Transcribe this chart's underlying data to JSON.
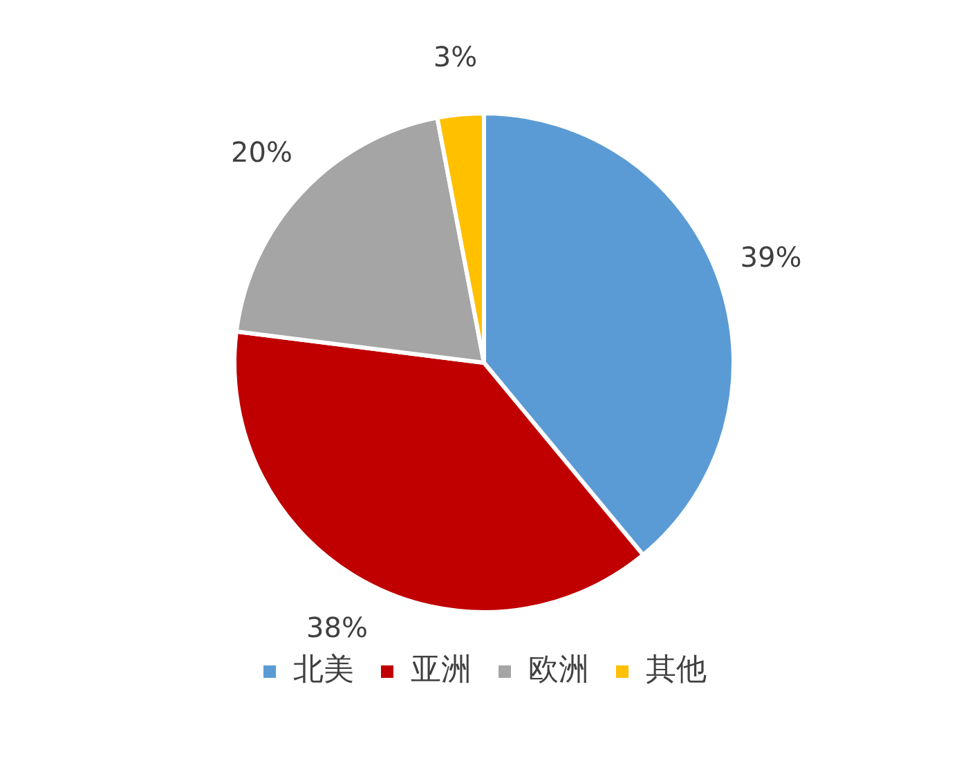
{
  "chart_data": {
    "type": "pie",
    "categories": [
      "北美",
      "亚洲",
      "欧洲",
      "其他"
    ],
    "values": [
      39,
      38,
      20,
      3
    ],
    "colors": [
      "#5b9bd5",
      "#c00000",
      "#a5a5a5",
      "#ffc000"
    ],
    "value_labels": [
      "39%",
      "38%",
      "20%",
      "3%"
    ],
    "legend": "bottom"
  }
}
